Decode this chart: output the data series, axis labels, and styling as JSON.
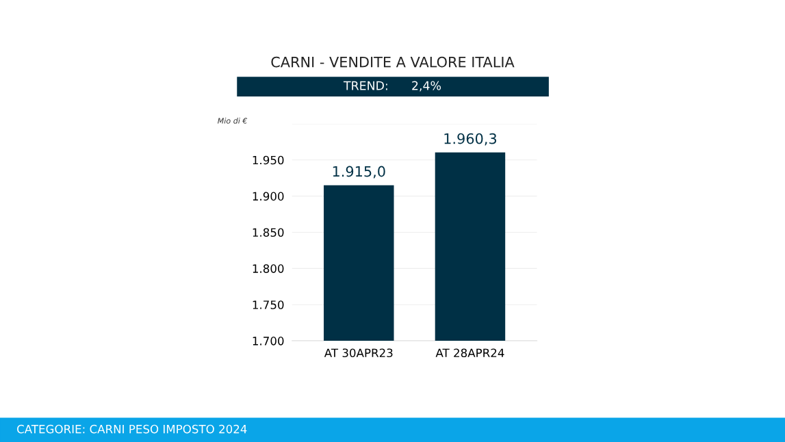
{
  "chart_data": {
    "type": "bar",
    "title": "CARNI - VENDITE A VALORE ITALIA",
    "subtitle": "TREND:      2,4%",
    "ylabel": "Mio di €",
    "categories": [
      "AT 30APR23",
      "AT 28APR24"
    ],
    "values": [
      1915.0,
      1960.3
    ],
    "color": "#003045",
    "value_labels": [
      "1.915,0",
      "1.960,3"
    ],
    "ylim": [
      1700,
      2000
    ],
    "yticks": [
      {
        "value": 1700,
        "label": "1.700"
      },
      {
        "value": 1750,
        "label": "1.750"
      },
      {
        "value": 1800,
        "label": "1.800"
      },
      {
        "value": 1850,
        "label": "1.850"
      },
      {
        "value": 1900,
        "label": "1.900"
      },
      {
        "value": 1950,
        "label": "1.950"
      },
      {
        "value": 2000,
        "label": null
      }
    ],
    "grid": "y",
    "legend": false,
    "annotations": [
      "CATEGORIE: CARNI PESO IMPOSTO 2024"
    ]
  }
}
